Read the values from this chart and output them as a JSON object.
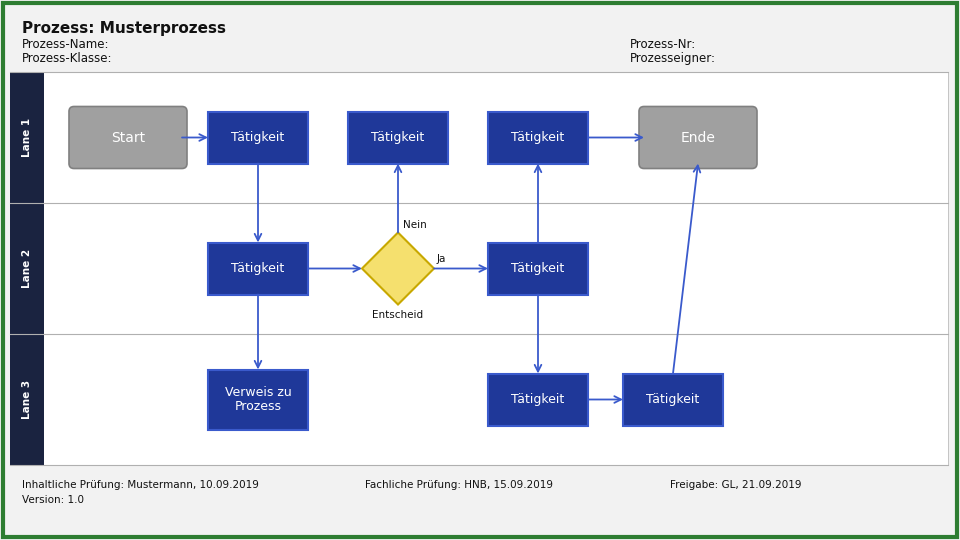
{
  "title": "Prozess: Musterprozess",
  "header_left": [
    "Prozess-Name:",
    "Prozess-Klasse:"
  ],
  "header_right": [
    "Prozess-Nr:",
    "Prozesseigner:"
  ],
  "footer_left": "Inhaltliche Prüfung: Mustermann, 10.09.2019",
  "footer_mid": "Fachliche Prüfung: HNB, 15.09.2019",
  "footer_right": "Freigabe: GL, 21.09.2019",
  "footer_version": "Version: 1.0",
  "outer_border_color": "#2e7d32",
  "lane_header_bg": "#1a2340",
  "lane_divider_color": "#b0b0b0",
  "blue_box_color": "#1f3899",
  "blue_box_edge": "#3a5acc",
  "gray_box_color": "#a0a0a0",
  "gray_box_edge": "#808080",
  "diamond_color": "#f5e06e",
  "diamond_edge": "#c8a800",
  "arrow_color": "#3a5acc",
  "text_white": "#ffffff",
  "text_dark": "#111111",
  "bg_color": "#f2f2f2",
  "lane_bg": "#ffffff"
}
